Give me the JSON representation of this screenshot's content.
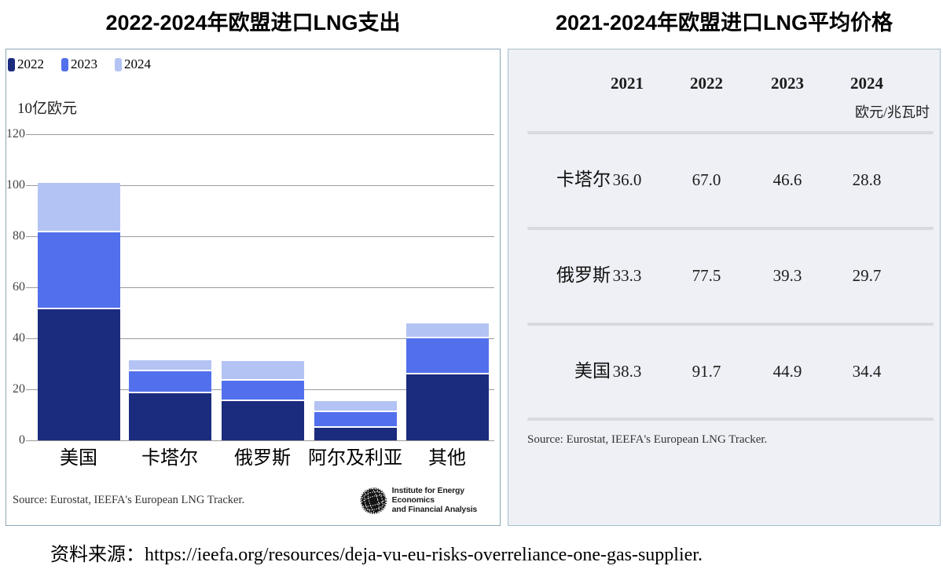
{
  "page": {
    "caption": "资料来源：https://ieefa.org/resources/deja-vu-eu-risks-overreliance-one-gas-supplier."
  },
  "left_panel": {
    "source": "Source: Eurostat, IEEFA's European LNG Tracker.",
    "logo_line1": "Institute for Energy Economics",
    "logo_line2": "and Financial Analysis"
  },
  "chart_data": [
    {
      "type": "bar",
      "stacked": true,
      "title": "2022-2024年欧盟进口LNG支出",
      "ylabel": "10亿欧元",
      "categories": [
        "美国",
        "卡塔尔",
        "俄罗斯",
        "阿尔及利亚",
        "其他"
      ],
      "series": [
        {
          "name": "2022",
          "color": "#1b2b7d",
          "values": [
            51.5,
            18.5,
            15.5,
            5.0,
            26.0
          ]
        },
        {
          "name": "2023",
          "color": "#5270ec",
          "values": [
            30.0,
            8.5,
            8.0,
            6.0,
            14.0
          ]
        },
        {
          "name": "2024",
          "color": "#b3c3f3",
          "values": [
            19.5,
            4.5,
            7.5,
            4.5,
            6.0
          ]
        }
      ],
      "totals": [
        101.0,
        31.5,
        31.0,
        15.5,
        46.0
      ],
      "ylim": [
        0,
        120
      ],
      "y_ticks": [
        0,
        20,
        40,
        60,
        80,
        100,
        120
      ],
      "grid": true,
      "legend_position": "top-left",
      "source": "Source: Eurostat, IEEFA's European LNG Tracker."
    },
    {
      "type": "table",
      "title": "2021-2024年欧盟进口LNG平均价格",
      "unit": "欧元/兆瓦时",
      "columns": [
        "2021",
        "2022",
        "2023",
        "2024"
      ],
      "rows": [
        {
          "label": "卡塔尔",
          "values": [
            "36.0",
            "67.0",
            "46.6",
            "28.8"
          ]
        },
        {
          "label": "俄罗斯",
          "values": [
            "33.3",
            "77.5",
            "39.3",
            "29.7"
          ]
        },
        {
          "label": "美国",
          "values": [
            "38.3",
            "91.7",
            "44.9",
            "34.4"
          ]
        }
      ],
      "source": "Source: Eurostat, IEEFA's European LNG Tracker."
    }
  ]
}
